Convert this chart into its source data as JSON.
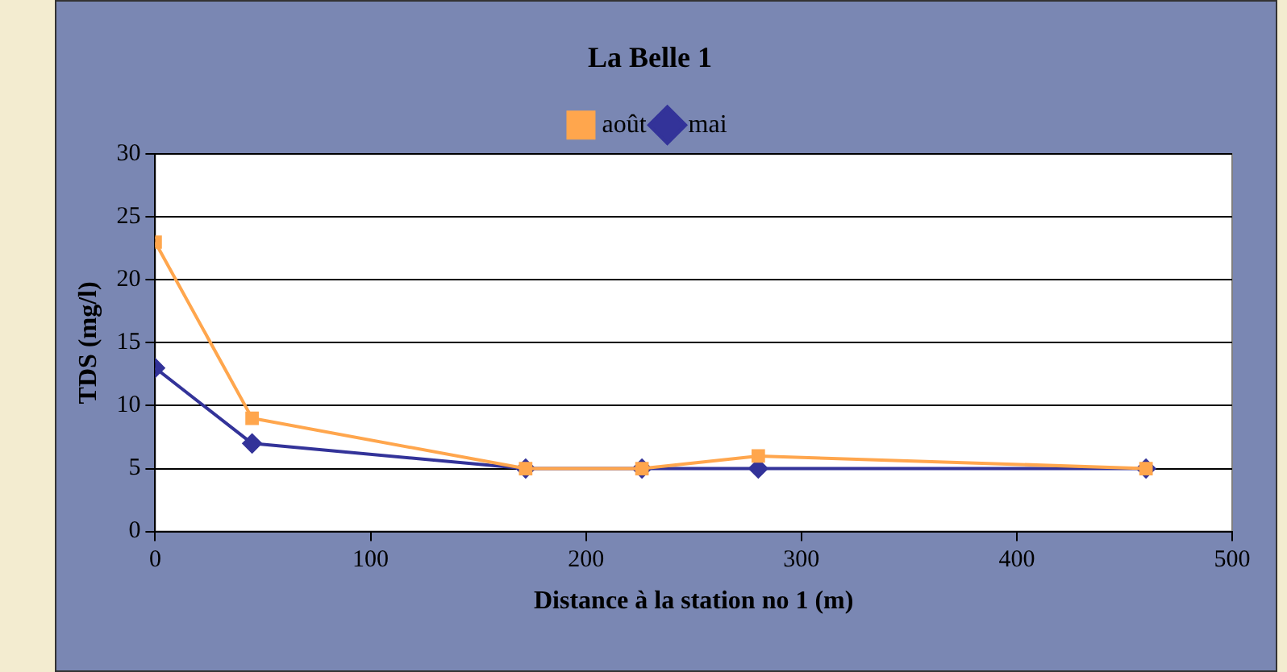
{
  "chart_data": {
    "type": "line",
    "title": "La Belle 1",
    "xlabel": "Distance à la station no 1 (m)",
    "ylabel": "TDS (mg/l)",
    "x": [
      0,
      45,
      172,
      226,
      280,
      460
    ],
    "series": [
      {
        "name": "mai",
        "color": "#333399",
        "marker": "diamond",
        "values": [
          13,
          7,
          5,
          5,
          5,
          5
        ]
      },
      {
        "name": "août",
        "color": "#ffa64d",
        "marker": "square",
        "values": [
          23,
          9,
          5,
          5,
          6,
          5
        ]
      }
    ],
    "xlim": [
      0,
      500
    ],
    "xticks": [
      0,
      100,
      200,
      300,
      400,
      500
    ],
    "ylim": [
      0,
      30
    ],
    "yticks": [
      0,
      5,
      10,
      15,
      20,
      25,
      30
    ],
    "grid": "y",
    "legend": "top",
    "line_style": "solid"
  }
}
